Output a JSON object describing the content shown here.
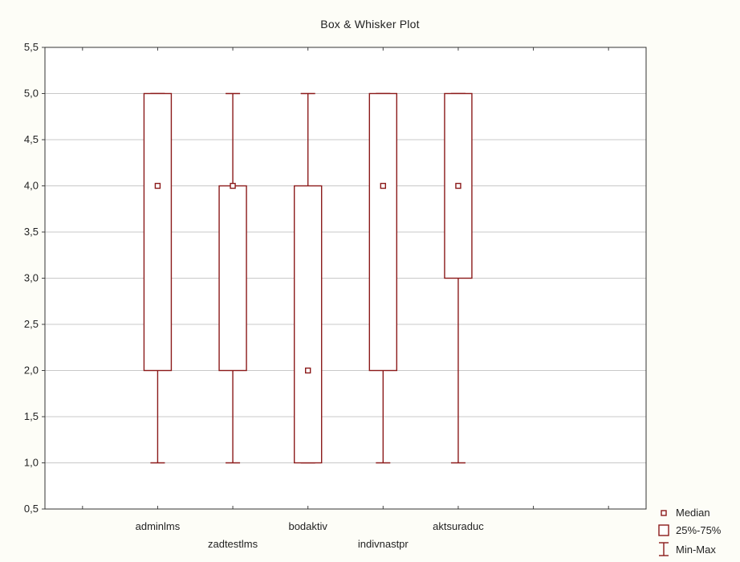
{
  "chart_data": {
    "type": "boxplot",
    "title": "Box & Whisker Plot",
    "categories": [
      "adminlms",
      "zadtestlms",
      "bodaktiv",
      "indivnastpr",
      "aktsuraduc"
    ],
    "min": [
      1,
      1,
      1,
      1,
      1
    ],
    "q1": [
      2,
      2,
      1,
      2,
      3
    ],
    "median": [
      4,
      4,
      2,
      4,
      4
    ],
    "q3": [
      5,
      4,
      4,
      5,
      5
    ],
    "max": [
      5,
      5,
      5,
      5,
      5
    ],
    "ylim": [
      0.5,
      5.5
    ],
    "yticks": [
      "0,5",
      "1,0",
      "1,5",
      "2,0",
      "2,5",
      "3,0",
      "3,5",
      "4,0",
      "4,5",
      "5,0",
      "5,5"
    ],
    "grid": true,
    "legend": [
      "Median",
      "25%-75%",
      "Min-Max"
    ],
    "legend_position": "bottom-right",
    "color": "#8b1a1a"
  }
}
